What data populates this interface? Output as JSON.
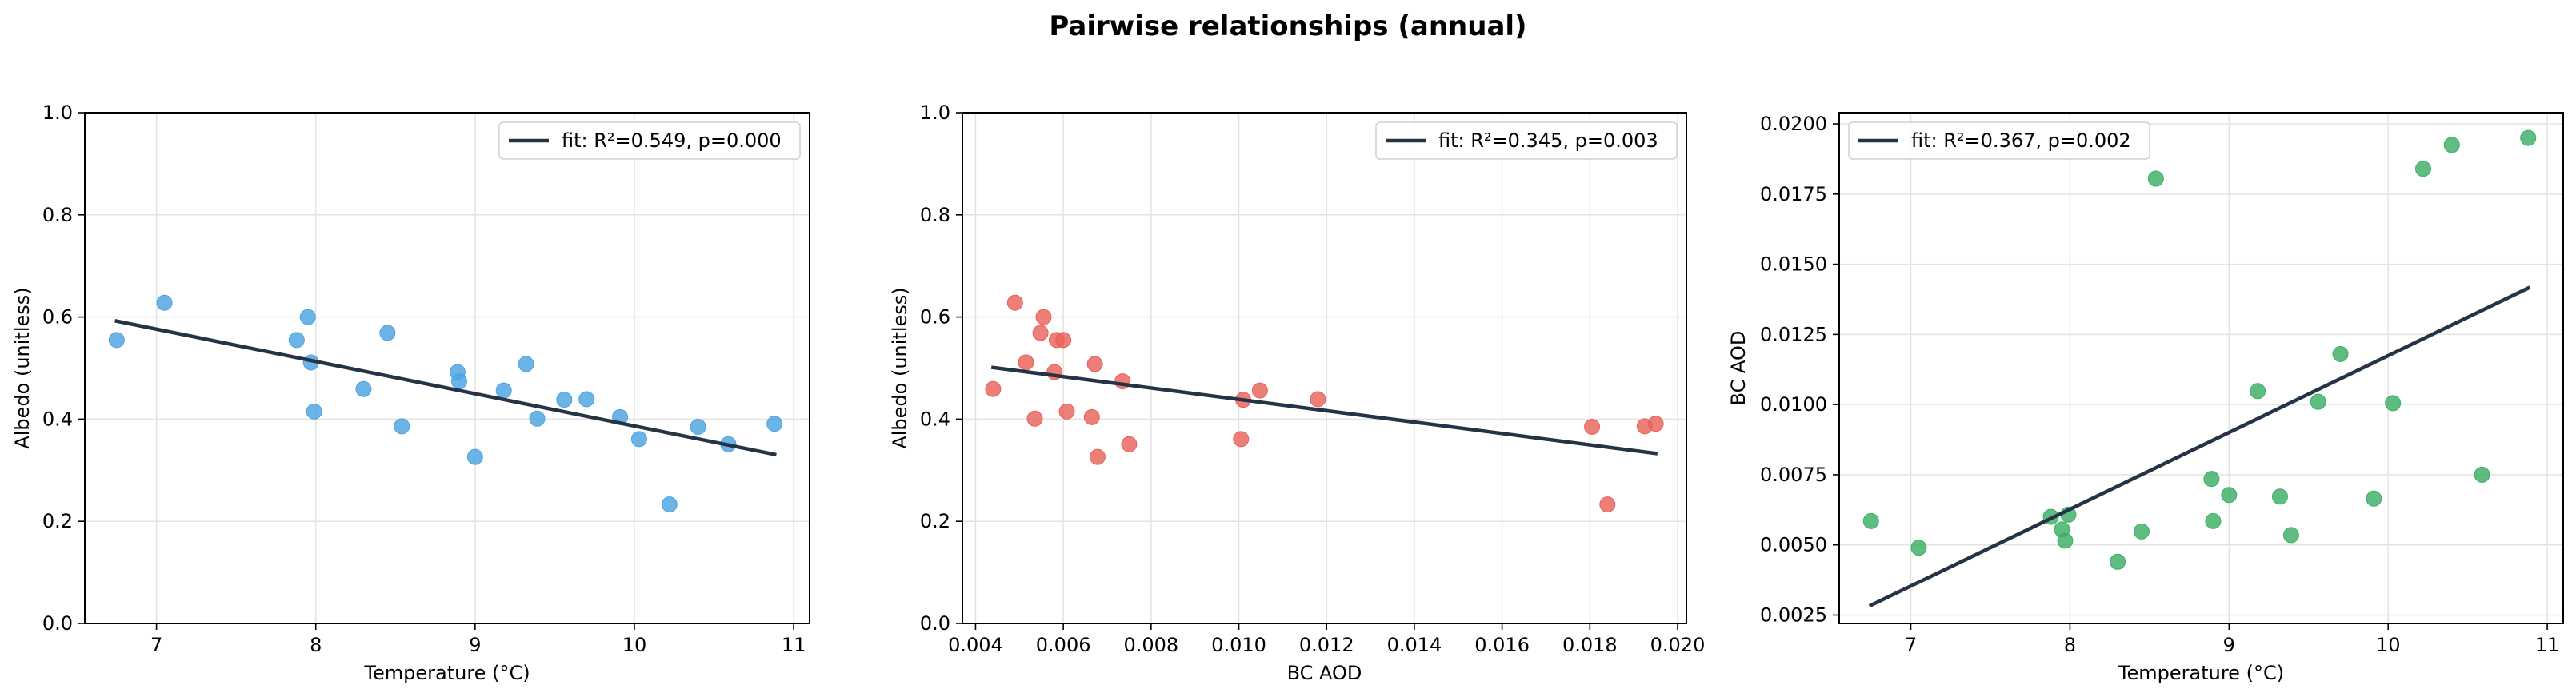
{
  "figure": {
    "title": "Pairwise relationships (annual)"
  },
  "colors": {
    "fit_line": "#253346",
    "grid": "#e3e3e3",
    "axes": "#000000",
    "legend_border": "#d0d0d0"
  },
  "chart_data": [
    {
      "type": "scatter",
      "title": "",
      "xlabel": "Temperature (°C)",
      "ylabel": "Albedo (unitless)",
      "xlim": [
        6.55,
        11.1
      ],
      "ylim": [
        0.0,
        1.0
      ],
      "xticks": [
        7,
        8,
        9,
        10,
        11
      ],
      "xtick_labels": [
        "7",
        "8",
        "9",
        "10",
        "11"
      ],
      "yticks": [
        0.0,
        0.2,
        0.4,
        0.6,
        0.8,
        1.0
      ],
      "ytick_labels": [
        "0.0",
        "0.2",
        "0.4",
        "0.6",
        "0.8",
        "1.0"
      ],
      "grid": true,
      "legend_position": "upper right",
      "point_color": "#4da3e0",
      "series": [
        {
          "name": "",
          "points": [
            [
              6.75,
              0.555
            ],
            [
              7.05,
              0.628
            ],
            [
              7.88,
              0.555
            ],
            [
              7.95,
              0.6
            ],
            [
              7.97,
              0.511
            ],
            [
              7.99,
              0.415
            ],
            [
              8.3,
              0.459
            ],
            [
              8.45,
              0.569
            ],
            [
              8.54,
              0.386
            ],
            [
              8.89,
              0.492
            ],
            [
              8.9,
              0.474
            ],
            [
              9.0,
              0.326
            ],
            [
              9.18,
              0.456
            ],
            [
              9.32,
              0.508
            ],
            [
              9.39,
              0.401
            ],
            [
              9.56,
              0.438
            ],
            [
              9.7,
              0.439
            ],
            [
              9.91,
              0.404
            ],
            [
              10.03,
              0.361
            ],
            [
              10.22,
              0.233
            ],
            [
              10.4,
              0.385
            ],
            [
              10.59,
              0.351
            ],
            [
              10.88,
              0.391
            ]
          ]
        }
      ],
      "fit": {
        "label": "fit: R²=0.549, p=0.000",
        "x": [
          6.75,
          10.88
        ],
        "y": [
          0.592,
          0.331
        ]
      }
    },
    {
      "type": "scatter",
      "title": "",
      "xlabel": "BC AOD",
      "ylabel": "Albedo (unitless)",
      "xlim": [
        0.0037,
        0.0202
      ],
      "ylim": [
        0.0,
        1.0
      ],
      "xticks": [
        0.004,
        0.006,
        0.008,
        0.01,
        0.012,
        0.014,
        0.016,
        0.018,
        0.02
      ],
      "xtick_labels": [
        "0.004",
        "0.006",
        "0.008",
        "0.010",
        "0.012",
        "0.014",
        "0.016",
        "0.018",
        "0.020"
      ],
      "yticks": [
        0.0,
        0.2,
        0.4,
        0.6,
        0.8,
        1.0
      ],
      "ytick_labels": [
        "0.0",
        "0.2",
        "0.4",
        "0.6",
        "0.8",
        "1.0"
      ],
      "grid": true,
      "legend_position": "upper right",
      "point_color": "#e8635a",
      "series": [
        {
          "name": "",
          "points": [
            [
              0.0044,
              0.459
            ],
            [
              0.0049,
              0.628
            ],
            [
              0.00515,
              0.511
            ],
            [
              0.00535,
              0.401
            ],
            [
              0.00548,
              0.569
            ],
            [
              0.00555,
              0.6
            ],
            [
              0.0058,
              0.492
            ],
            [
              0.00585,
              0.555
            ],
            [
              0.006,
              0.555
            ],
            [
              0.00608,
              0.415
            ],
            [
              0.00665,
              0.404
            ],
            [
              0.00672,
              0.508
            ],
            [
              0.00678,
              0.326
            ],
            [
              0.00735,
              0.474
            ],
            [
              0.0075,
              0.351
            ],
            [
              0.01005,
              0.361
            ],
            [
              0.0101,
              0.438
            ],
            [
              0.01048,
              0.456
            ],
            [
              0.0118,
              0.439
            ],
            [
              0.01805,
              0.385
            ],
            [
              0.0184,
              0.233
            ],
            [
              0.01925,
              0.386
            ],
            [
              0.0195,
              0.391
            ]
          ]
        }
      ],
      "fit": {
        "label": "fit: R²=0.345, p=0.003",
        "x": [
          0.0044,
          0.0195
        ],
        "y": [
          0.501,
          0.333
        ]
      }
    },
    {
      "type": "scatter",
      "title": "",
      "xlabel": "Temperature (°C)",
      "ylabel": "BC AOD",
      "xlim": [
        6.55,
        11.1
      ],
      "ylim": [
        0.0022,
        0.0204
      ],
      "xticks": [
        7,
        8,
        9,
        10,
        11
      ],
      "xtick_labels": [
        "7",
        "8",
        "9",
        "10",
        "11"
      ],
      "yticks": [
        0.0025,
        0.005,
        0.0075,
        0.01,
        0.0125,
        0.015,
        0.0175,
        0.02
      ],
      "ytick_labels": [
        "0.0025",
        "0.0050",
        "0.0075",
        "0.0100",
        "0.0125",
        "0.0150",
        "0.0175",
        "0.0200"
      ],
      "grid": true,
      "legend_position": "upper left",
      "point_color": "#3daf66",
      "series": [
        {
          "name": "",
          "points": [
            [
              6.75,
              0.00585
            ],
            [
              7.05,
              0.0049
            ],
            [
              7.88,
              0.006
            ],
            [
              7.95,
              0.00555
            ],
            [
              7.97,
              0.00515
            ],
            [
              7.99,
              0.00608
            ],
            [
              8.3,
              0.0044
            ],
            [
              8.45,
              0.00548
            ],
            [
              8.54,
              0.01805
            ],
            [
              8.89,
              0.00735
            ],
            [
              8.9,
              0.00585
            ],
            [
              9.0,
              0.00678
            ],
            [
              9.18,
              0.01048
            ],
            [
              9.32,
              0.00672
            ],
            [
              9.39,
              0.00535
            ],
            [
              9.56,
              0.0101
            ],
            [
              9.7,
              0.0118
            ],
            [
              9.91,
              0.00665
            ],
            [
              10.03,
              0.01005
            ],
            [
              10.22,
              0.0184
            ],
            [
              10.4,
              0.01925
            ],
            [
              10.59,
              0.0075
            ],
            [
              10.88,
              0.0195
            ]
          ]
        }
      ],
      "fit": {
        "label": "fit: R²=0.367, p=0.002",
        "x": [
          6.75,
          10.88
        ],
        "y": [
          0.00285,
          0.01415
        ]
      }
    }
  ]
}
